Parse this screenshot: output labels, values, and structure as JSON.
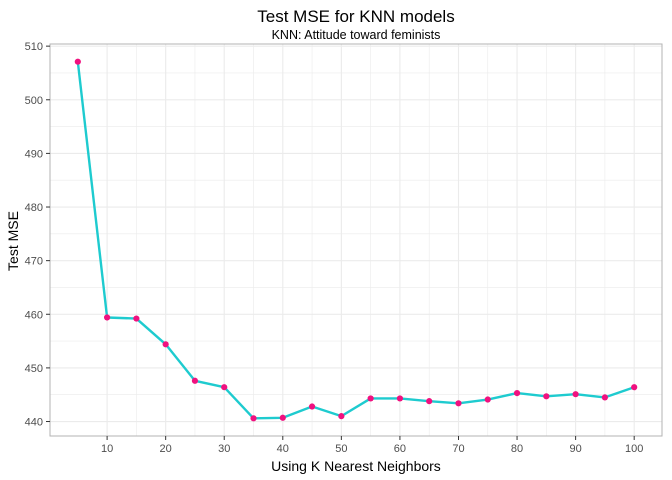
{
  "chart_data": {
    "type": "line",
    "title": "Test MSE for KNN models",
    "subtitle": "KNN: Attitude toward feminists",
    "xlabel": "Using K Nearest Neighbors",
    "ylabel": "Test MSE",
    "x": [
      5,
      10,
      15,
      20,
      25,
      30,
      35,
      40,
      45,
      50,
      55,
      60,
      65,
      70,
      75,
      80,
      85,
      90,
      95,
      100
    ],
    "series": [
      {
        "values": [
          507.1,
          459.4,
          459.2,
          454.4,
          447.6,
          446.4,
          440.6,
          440.7,
          442.8,
          441.0,
          444.3,
          444.3,
          443.8,
          443.4,
          444.1,
          445.3,
          444.7,
          445.1,
          444.5,
          446.4
        ]
      }
    ],
    "xlim": [
      0.25,
      104.75
    ],
    "ylim": [
      437.3,
      510.4
    ],
    "x_ticks": [
      "10",
      "20",
      "30",
      "40",
      "50",
      "60",
      "70",
      "80",
      "90",
      "100"
    ],
    "y_ticks": [
      "440",
      "450",
      "460",
      "470",
      "480",
      "490",
      "500",
      "510"
    ],
    "x_tick_values": [
      10,
      20,
      30,
      40,
      50,
      60,
      70,
      80,
      90,
      100
    ],
    "y_tick_values": [
      440,
      450,
      460,
      470,
      480,
      490,
      500,
      510
    ],
    "grid": true,
    "line_color": "#1ECBCF",
    "point_color": "#F0117F",
    "grid_color": "#EBEBEB",
    "panel_border_color": "#B3B3B3"
  }
}
